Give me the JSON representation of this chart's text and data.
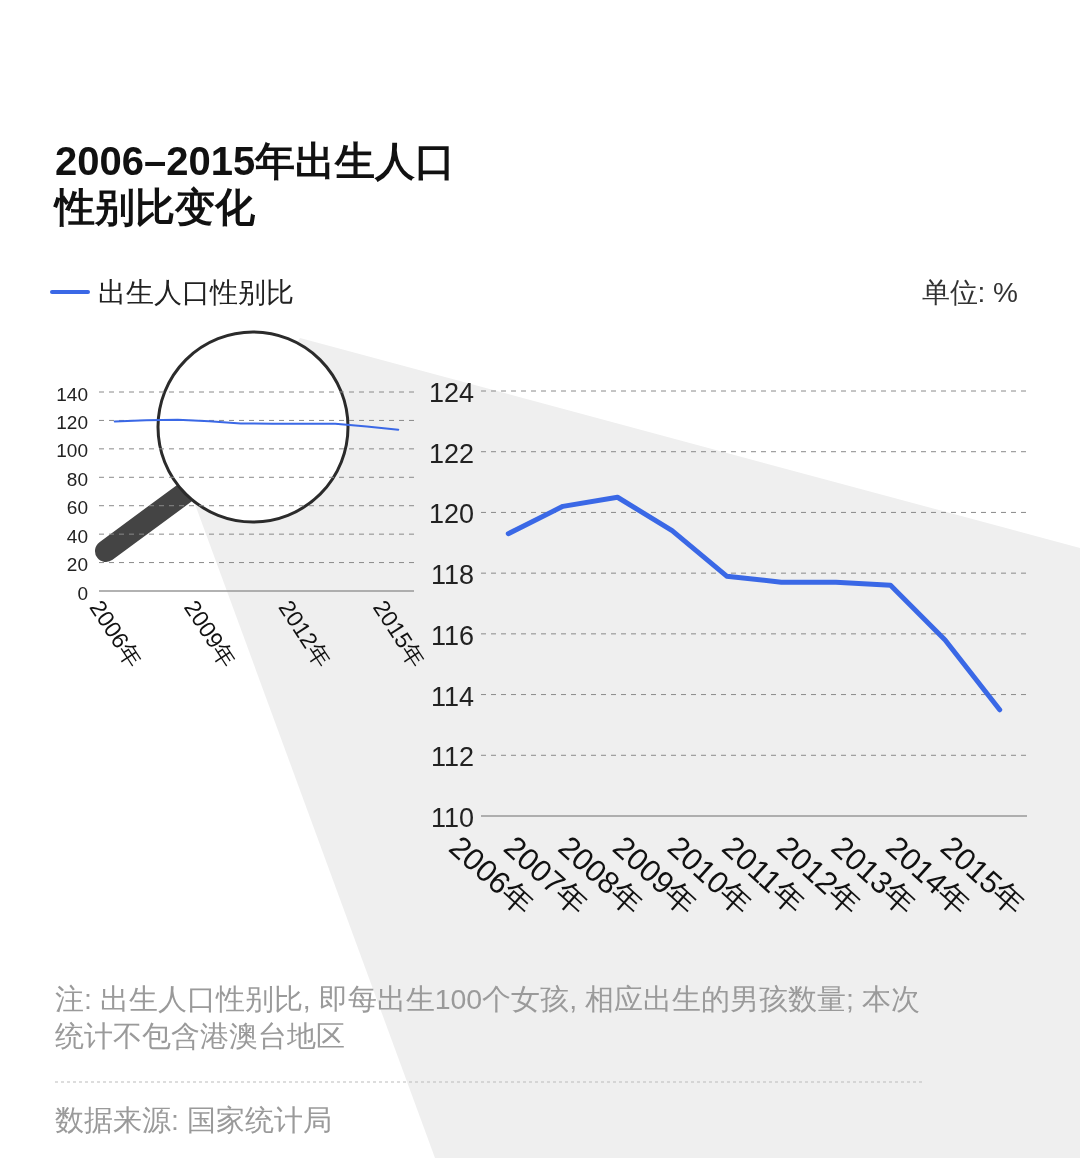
{
  "chart_data": [
    {
      "type": "line",
      "title": "2006–2015年出生人口性别比变化",
      "categories": [
        "2006年",
        null,
        null,
        "2009年",
        null,
        null,
        "2012年",
        null,
        null,
        "2015年"
      ],
      "series": [
        {
          "name": "出生人口性别比",
          "color": "#3a68e6",
          "values": [
            119.3,
            120.2,
            120.5,
            119.4,
            117.9,
            117.7,
            117.7,
            117.6,
            115.8,
            113.5
          ]
        }
      ],
      "ylim": [
        0,
        140
      ],
      "yticks": [
        0,
        20,
        40,
        60,
        80,
        100,
        120,
        140
      ],
      "grid": "y",
      "legend": "top left"
    },
    {
      "type": "line",
      "ylabel": "单位: %",
      "categories": [
        "2006年",
        "2007年",
        "2008年",
        "2009年",
        "2010年",
        "2011年",
        "2012年",
        "2013年",
        "2014年",
        "2015年"
      ],
      "series": [
        {
          "color": "#3a68e6",
          "values": [
            119.3,
            120.2,
            120.5,
            119.4,
            117.9,
            117.7,
            117.7,
            117.6,
            115.8,
            113.5
          ]
        }
      ],
      "ylim": [
        110,
        124
      ],
      "yticks": [
        110,
        112,
        114,
        116,
        118,
        120,
        122,
        124
      ],
      "grid": "y",
      "annotations": [
        "注: 出生人口性别比, 即每出生100个女孩, 相应出生的男孩数量; 本次统计不包含港澳台地区",
        "数据来源: 国家统计局"
      ]
    }
  ]
}
